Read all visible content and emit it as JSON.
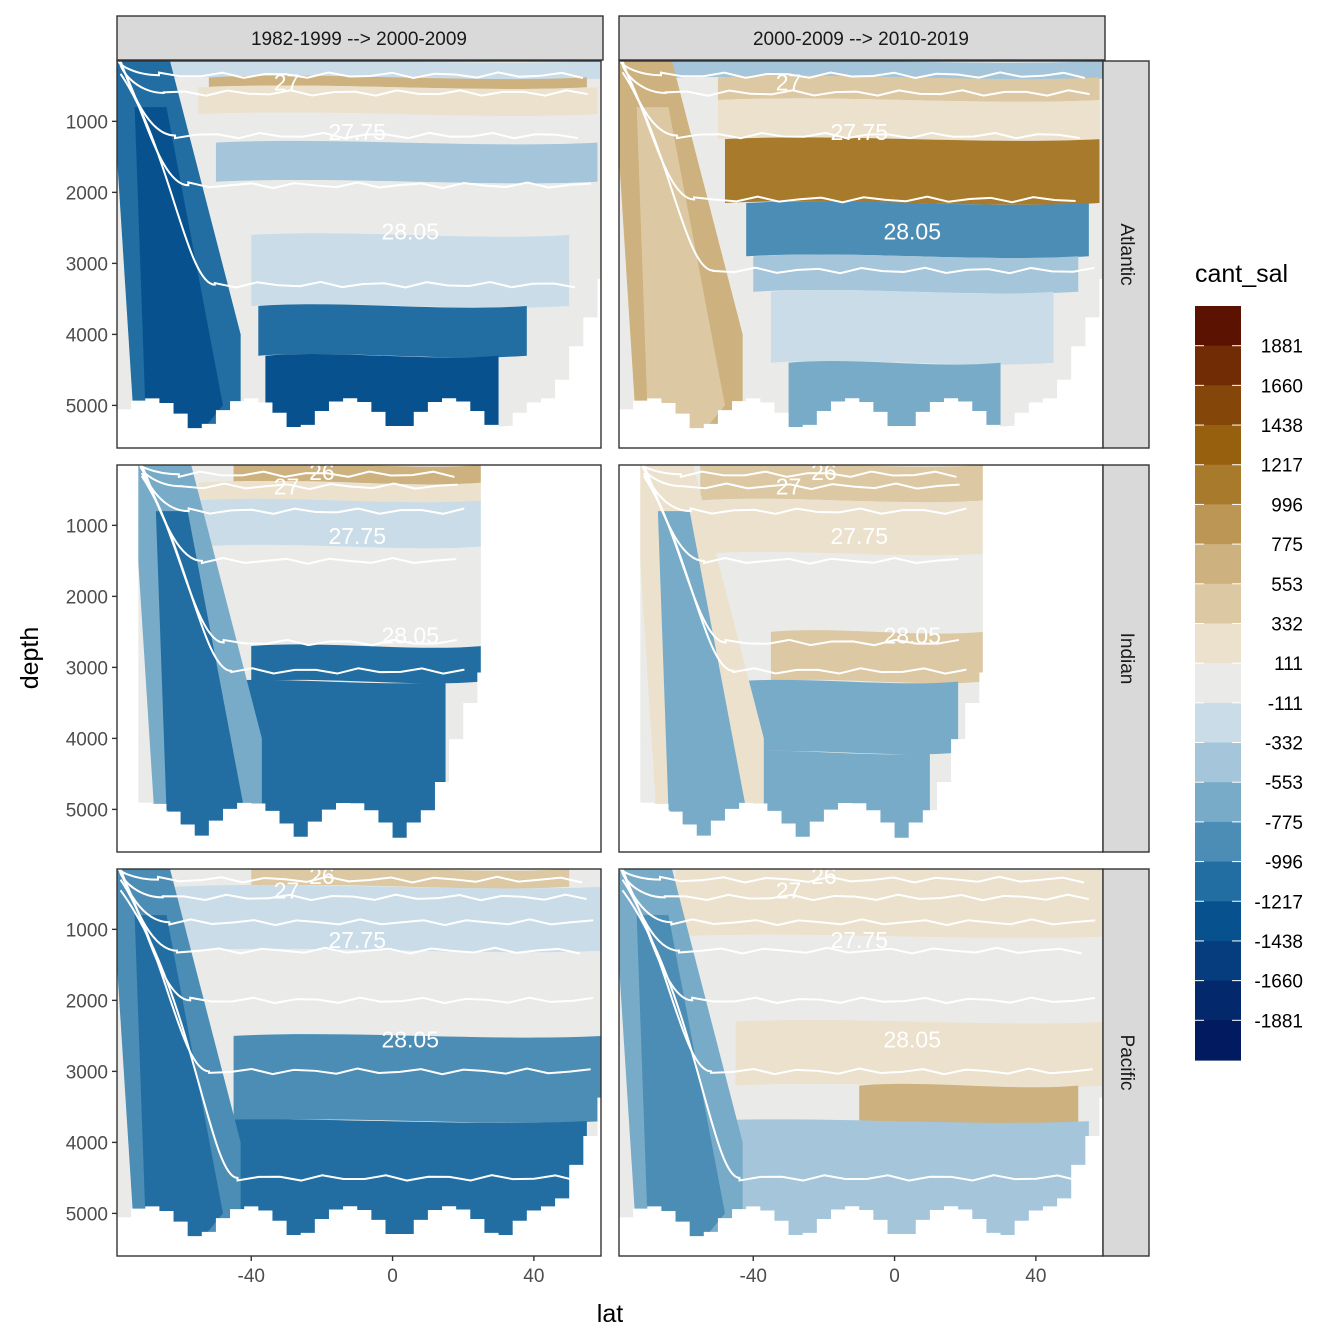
{
  "chart_data": {
    "type": "filled-contour-facet",
    "xlabel": "lat",
    "ylabel": "depth",
    "xticks": [
      -40,
      0,
      40
    ],
    "yticks": [
      1000,
      2000,
      3000,
      4000,
      5000
    ],
    "xlim": [
      -78,
      59
    ],
    "ylim": [
      5600,
      150
    ],
    "y_reversed": true,
    "grid": "on",
    "columns": [
      "1982-1999 --> 2000-2009",
      "2000-2009 --> 2010-2019"
    ],
    "rows": [
      "Atlantic",
      "Indian",
      "Pacific"
    ],
    "legend": {
      "title": "cant_sal",
      "placement": "right",
      "labels": [
        "1881",
        "1660",
        "1438",
        "1217",
        "996",
        "775",
        "553",
        "332",
        "111",
        "-111",
        "-332",
        "-553",
        "-775",
        "-996",
        "-1217",
        "-1438",
        "-1660",
        "-1881"
      ],
      "colors": [
        "#5c1200",
        "#712b05",
        "#854709",
        "#97600e",
        "#a87a2c",
        "#bc9655",
        "#cdb17e",
        "#dcc8a2",
        "#ebe1cd",
        "#eaebe9",
        "#c9dce8",
        "#a4c5da",
        "#78abc8",
        "#4b8db5",
        "#226ea2",
        "#07528e",
        "#053d7e",
        "#03296c",
        "#021a5f"
      ]
    },
    "contour_labels": [
      "26",
      "27",
      "27.75",
      "28.05"
    ],
    "panels": [
      {
        "row": "Atlantic",
        "column": "1982-1999 --> 2000-2009",
        "lat_extent": [
          -78,
          59
        ],
        "contour_labels": [
          "27",
          "27.75",
          "28.05"
        ]
      },
      {
        "row": "Atlantic",
        "column": "2000-2009 --> 2010-2019",
        "lat_extent": [
          -78,
          59
        ],
        "contour_labels": [
          "27",
          "27.75",
          "28.05"
        ]
      },
      {
        "row": "Indian",
        "column": "1982-1999 --> 2000-2009",
        "lat_extent": [
          -72,
          25
        ],
        "contour_labels": [
          "26",
          "27",
          "27.75",
          "28.05"
        ]
      },
      {
        "row": "Indian",
        "column": "2000-2009 --> 2010-2019",
        "lat_extent": [
          -72,
          25
        ],
        "contour_labels": [
          "26",
          "27",
          "27.75",
          "28.05"
        ]
      },
      {
        "row": "Pacific",
        "column": "1982-1999 --> 2000-2009",
        "lat_extent": [
          -78,
          60
        ],
        "contour_labels": [
          "26",
          "27",
          "27.75",
          "28.05"
        ]
      },
      {
        "row": "Pacific",
        "column": "2000-2009 --> 2010-2019",
        "lat_extent": [
          -78,
          60
        ],
        "contour_labels": [
          "26",
          "27",
          "27.75",
          "28.05"
        ]
      }
    ]
  }
}
